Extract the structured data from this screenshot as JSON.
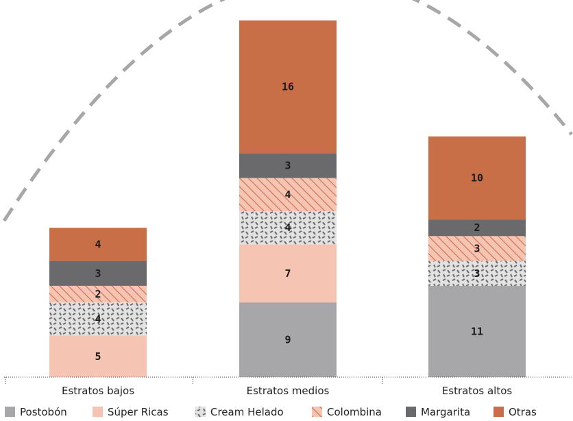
{
  "chart_data": {
    "type": "bar",
    "stacked": true,
    "categories": [
      "Estratos bajos",
      "Estratos medios",
      "Estratos altos"
    ],
    "series": [
      {
        "name": "Postobón",
        "values": [
          0,
          9,
          11
        ],
        "color": "#a7a7aa",
        "pattern": "solid"
      },
      {
        "name": "Súper Ricas",
        "values": [
          5,
          7,
          0
        ],
        "color": "#f6c4b2",
        "pattern": "solid"
      },
      {
        "name": "Cream Helado",
        "values": [
          4,
          4,
          3
        ],
        "color": "#e2e2e2",
        "pattern": "dashes"
      },
      {
        "name": "Colombina",
        "values": [
          2,
          4,
          3
        ],
        "color": "#f6c4b2",
        "pattern": "hatch"
      },
      {
        "name": "Margarita",
        "values": [
          3,
          3,
          2
        ],
        "color": "#6a6a6d",
        "pattern": "solid"
      },
      {
        "name": "Otras",
        "values": [
          4,
          16,
          10
        ],
        "color": "#c96f48",
        "pattern": "solid"
      }
    ],
    "ylim": [
      0,
      42
    ],
    "grid": false,
    "legend_position": "bottom",
    "annotation": "dashed-arc"
  }
}
